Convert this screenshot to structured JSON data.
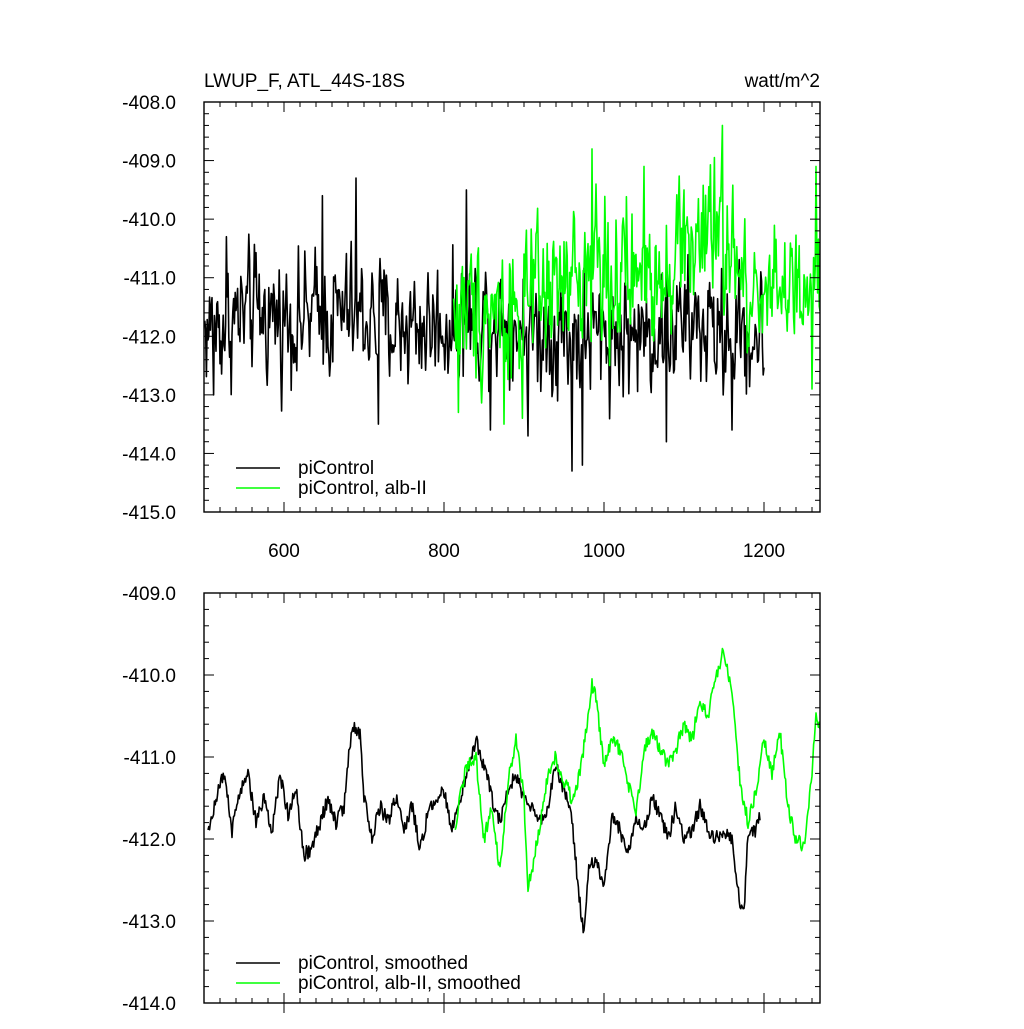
{
  "chart_data": [
    {
      "type": "line",
      "title": "LWUP_F, ATL_44S-18S",
      "units": "watt/m^2",
      "xlim": [
        500,
        1270
      ],
      "ylim": [
        -415.0,
        -408.0
      ],
      "xticks": [
        600,
        800,
        1000,
        1200
      ],
      "xtick_labels": [
        "600",
        "800",
        "1000",
        "1200"
      ],
      "yticks": [
        -415.0,
        -414.0,
        -413.0,
        -412.0,
        -411.0,
        -410.0,
        -409.0,
        -408.0
      ],
      "ytick_labels": [
        "-415.0",
        "-414.0",
        "-413.0",
        "-412.0",
        "-411.0",
        "-410.0",
        "-409.0",
        "-408.0"
      ],
      "grid": false,
      "legend_position": "bottom-left",
      "series": [
        {
          "name": "piControl",
          "color": "#000000",
          "x_range": [
            501,
            1200
          ],
          "kind": "annual",
          "mean": [
            [
              501,
              -411.9
            ],
            [
              560,
              -411.6
            ],
            [
              620,
              -411.7
            ],
            [
              680,
              -411.6
            ],
            [
              740,
              -411.8
            ],
            [
              800,
              -411.8
            ],
            [
              860,
              -411.6
            ],
            [
              920,
              -411.9
            ],
            [
              980,
              -412.0
            ],
            [
              1040,
              -412.0
            ],
            [
              1100,
              -411.8
            ],
            [
              1160,
              -412.0
            ],
            [
              1200,
              -412.0
            ]
          ],
          "amplitude": 0.75,
          "extremes": [
            [
              512,
              -413.0
            ],
            [
              528,
              -410.3
            ],
            [
              648,
              -409.6
            ],
            [
              690,
              -409.3
            ],
            [
              718,
              -413.5
            ],
            [
              828,
              -409.5
            ],
            [
              858,
              -413.6
            ],
            [
              905,
              -413.7
            ],
            [
              960,
              -414.3
            ],
            [
              973,
              -414.2
            ],
            [
              1078,
              -413.8
            ],
            [
              1160,
              -413.6
            ]
          ]
        },
        {
          "name": "piControl, alb-II",
          "color": "#00ff00",
          "x_range": [
            812,
            1270
          ],
          "kind": "annual",
          "mean": [
            [
              812,
              -411.6
            ],
            [
              850,
              -411.5
            ],
            [
              900,
              -411.5
            ],
            [
              950,
              -411.2
            ],
            [
              990,
              -410.7
            ],
            [
              1020,
              -411.1
            ],
            [
              1060,
              -410.9
            ],
            [
              1100,
              -410.4
            ],
            [
              1150,
              -410.3
            ],
            [
              1180,
              -411.4
            ],
            [
              1210,
              -410.9
            ],
            [
              1250,
              -411.6
            ],
            [
              1270,
              -411.0
            ]
          ],
          "amplitude": 0.85,
          "extremes": [
            [
              818,
              -413.3
            ],
            [
              875,
              -413.5
            ],
            [
              898,
              -413.4
            ],
            [
              985,
              -408.8
            ],
            [
              990,
              -409.4
            ],
            [
              1050,
              -409.1
            ],
            [
              1100,
              -409.5
            ],
            [
              1148,
              -408.4
            ],
            [
              1260,
              -412.9
            ],
            [
              1265,
              -409.1
            ]
          ]
        }
      ]
    },
    {
      "type": "line",
      "xlim": [
        500,
        1270
      ],
      "ylim": [
        -414.0,
        -409.0
      ],
      "xticks": [
        600,
        800,
        1000,
        1200
      ],
      "yticks": [
        -414.0,
        -413.0,
        -412.0,
        -411.0,
        -410.0,
        -409.0
      ],
      "ytick_labels": [
        "-414.0",
        "-413.0",
        "-412.0",
        "-411.0",
        "-410.0",
        "-409.0"
      ],
      "grid": false,
      "legend_position": "bottom-left",
      "series": [
        {
          "name": "piControl, smoothed",
          "color": "#000000",
          "x_range": [
            505,
            1195
          ],
          "kind": "smoothed",
          "points": [
            [
              505,
              -411.9
            ],
            [
              515,
              -411.5
            ],
            [
              525,
              -411.2
            ],
            [
              535,
              -411.9
            ],
            [
              545,
              -411.4
            ],
            [
              555,
              -411.2
            ],
            [
              565,
              -411.8
            ],
            [
              575,
              -411.5
            ],
            [
              585,
              -411.9
            ],
            [
              595,
              -411.2
            ],
            [
              605,
              -411.7
            ],
            [
              615,
              -411.4
            ],
            [
              625,
              -412.2
            ],
            [
              635,
              -412.1
            ],
            [
              645,
              -411.8
            ],
            [
              655,
              -411.5
            ],
            [
              665,
              -411.8
            ],
            [
              675,
              -411.6
            ],
            [
              685,
              -410.6
            ],
            [
              695,
              -410.7
            ],
            [
              700,
              -411.5
            ],
            [
              710,
              -412.0
            ],
            [
              720,
              -411.6
            ],
            [
              730,
              -411.8
            ],
            [
              740,
              -411.5
            ],
            [
              750,
              -411.9
            ],
            [
              760,
              -411.6
            ],
            [
              770,
              -412.1
            ],
            [
              780,
              -411.7
            ],
            [
              790,
              -411.5
            ],
            [
              800,
              -411.4
            ],
            [
              810,
              -411.9
            ],
            [
              820,
              -411.5
            ],
            [
              830,
              -411.2
            ],
            [
              840,
              -410.8
            ],
            [
              850,
              -411.1
            ],
            [
              860,
              -411.5
            ],
            [
              870,
              -411.8
            ],
            [
              880,
              -411.4
            ],
            [
              890,
              -411.2
            ],
            [
              900,
              -411.5
            ],
            [
              910,
              -411.6
            ],
            [
              920,
              -411.8
            ],
            [
              930,
              -411.6
            ],
            [
              940,
              -411.1
            ],
            [
              950,
              -411.4
            ],
            [
              960,
              -411.8
            ],
            [
              970,
              -412.8
            ],
            [
              975,
              -413.2
            ],
            [
              980,
              -412.4
            ],
            [
              990,
              -412.2
            ],
            [
              1000,
              -412.6
            ],
            [
              1010,
              -411.7
            ],
            [
              1020,
              -411.9
            ],
            [
              1030,
              -412.2
            ],
            [
              1040,
              -411.7
            ],
            [
              1050,
              -411.9
            ],
            [
              1060,
              -411.5
            ],
            [
              1070,
              -411.7
            ],
            [
              1080,
              -412.0
            ],
            [
              1090,
              -411.6
            ],
            [
              1100,
              -412.0
            ],
            [
              1110,
              -411.9
            ],
            [
              1120,
              -411.6
            ],
            [
              1130,
              -411.9
            ],
            [
              1140,
              -412.0
            ],
            [
              1150,
              -411.9
            ],
            [
              1160,
              -412.0
            ],
            [
              1170,
              -412.8
            ],
            [
              1175,
              -412.9
            ],
            [
              1180,
              -411.9
            ],
            [
              1190,
              -411.9
            ],
            [
              1195,
              -411.7
            ]
          ]
        },
        {
          "name": "piControl, alb-II, smoothed",
          "color": "#00ff00",
          "x_range": [
            814,
            1270
          ],
          "kind": "smoothed",
          "points": [
            [
              814,
              -411.9
            ],
            [
              820,
              -411.4
            ],
            [
              830,
              -411.1
            ],
            [
              840,
              -411.0
            ],
            [
              850,
              -412.0
            ],
            [
              860,
              -411.6
            ],
            [
              870,
              -412.4
            ],
            [
              880,
              -411.3
            ],
            [
              890,
              -410.8
            ],
            [
              900,
              -411.5
            ],
            [
              905,
              -412.6
            ],
            [
              910,
              -412.4
            ],
            [
              920,
              -411.8
            ],
            [
              930,
              -411.2
            ],
            [
              940,
              -411.0
            ],
            [
              950,
              -411.3
            ],
            [
              960,
              -411.5
            ],
            [
              970,
              -411.2
            ],
            [
              980,
              -410.5
            ],
            [
              985,
              -410.1
            ],
            [
              990,
              -410.3
            ],
            [
              1000,
              -411.1
            ],
            [
              1010,
              -410.8
            ],
            [
              1020,
              -410.9
            ],
            [
              1030,
              -411.3
            ],
            [
              1040,
              -411.7
            ],
            [
              1050,
              -410.9
            ],
            [
              1060,
              -410.7
            ],
            [
              1070,
              -410.9
            ],
            [
              1080,
              -411.1
            ],
            [
              1090,
              -410.9
            ],
            [
              1100,
              -410.6
            ],
            [
              1110,
              -410.8
            ],
            [
              1120,
              -410.3
            ],
            [
              1130,
              -410.5
            ],
            [
              1140,
              -410.0
            ],
            [
              1150,
              -409.7
            ],
            [
              1160,
              -410.2
            ],
            [
              1170,
              -411.3
            ],
            [
              1180,
              -411.8
            ],
            [
              1190,
              -411.4
            ],
            [
              1200,
              -410.8
            ],
            [
              1210,
              -411.2
            ],
            [
              1220,
              -410.7
            ],
            [
              1230,
              -411.6
            ],
            [
              1240,
              -412.0
            ],
            [
              1250,
              -412.1
            ],
            [
              1260,
              -411.2
            ],
            [
              1265,
              -410.5
            ],
            [
              1270,
              -410.7
            ]
          ]
        }
      ]
    }
  ]
}
